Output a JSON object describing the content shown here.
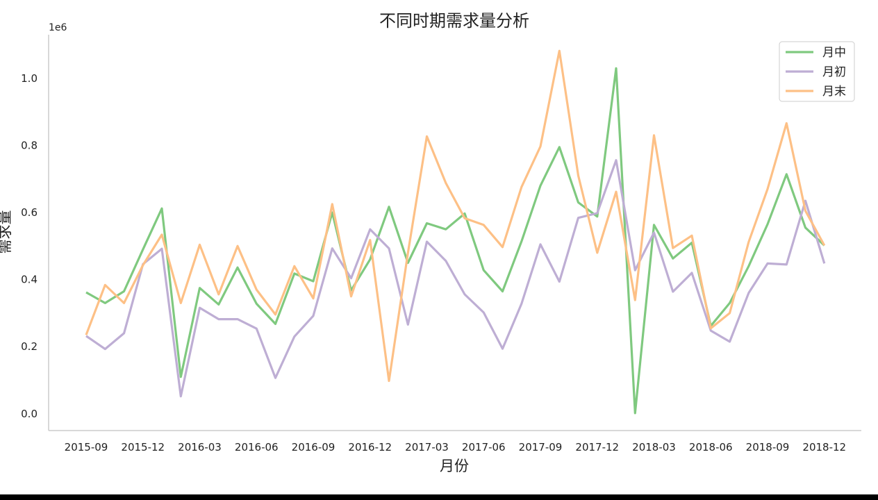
{
  "chart_data": {
    "type": "line",
    "title": "不同时期需求量分析",
    "xlabel": "月份",
    "ylabel": "需求量",
    "y_offset_label": "1e6",
    "ylim": [
      -0.05,
      1.13
    ],
    "yticks": [
      0.0,
      0.2,
      0.4,
      0.6,
      0.8,
      1.0
    ],
    "ytick_labels": [
      "0.0",
      "0.2",
      "0.4",
      "0.6",
      "0.8",
      "1.0"
    ],
    "xticks": [
      "2015-09",
      "2015-12",
      "2016-03",
      "2016-06",
      "2016-09",
      "2016-12",
      "2017-03",
      "2017-06",
      "2017-09",
      "2017-12",
      "2018-03",
      "2018-06",
      "2018-09",
      "2018-12"
    ],
    "x": [
      "2015-09",
      "2015-10",
      "2015-11",
      "2015-12",
      "2016-01",
      "2016-02",
      "2016-03",
      "2016-04",
      "2016-05",
      "2016-06",
      "2016-07",
      "2016-08",
      "2016-09",
      "2016-10",
      "2016-11",
      "2016-12",
      "2017-01",
      "2017-02",
      "2017-03",
      "2017-04",
      "2017-05",
      "2017-06",
      "2017-07",
      "2017-08",
      "2017-09",
      "2017-10",
      "2017-11",
      "2017-12",
      "2018-01",
      "2018-02",
      "2018-03",
      "2018-04",
      "2018-05",
      "2018-06",
      "2018-07",
      "2018-08",
      "2018-09",
      "2018-10",
      "2018-11",
      "2018-12"
    ],
    "grid": false,
    "legend_position": "top-right",
    "series": [
      {
        "name": "月中",
        "color": "#7fc97f",
        "values": [
          0.362,
          0.33,
          0.365,
          0.49,
          0.612,
          0.11,
          0.375,
          0.326,
          0.436,
          0.328,
          0.268,
          0.418,
          0.395,
          0.6,
          0.368,
          0.46,
          0.617,
          0.45,
          0.568,
          0.55,
          0.597,
          0.428,
          0.365,
          0.514,
          0.68,
          0.795,
          0.63,
          0.588,
          1.03,
          0.002,
          0.563,
          0.463,
          0.51,
          0.262,
          0.33,
          0.44,
          0.565,
          0.714,
          0.555,
          0.502
        ]
      },
      {
        "name": "月初",
        "color": "#beaed4",
        "values": [
          0.232,
          0.193,
          0.24,
          0.446,
          0.492,
          0.052,
          0.316,
          0.282,
          0.282,
          0.254,
          0.107,
          0.23,
          0.292,
          0.493,
          0.404,
          0.55,
          0.493,
          0.266,
          0.513,
          0.456,
          0.356,
          0.302,
          0.194,
          0.328,
          0.505,
          0.394,
          0.584,
          0.598,
          0.756,
          0.428,
          0.54,
          0.364,
          0.42,
          0.248,
          0.215,
          0.36,
          0.448,
          0.445,
          0.635,
          0.448
        ]
      },
      {
        "name": "月末",
        "color": "#fdc086",
        "values": [
          0.235,
          0.384,
          0.33,
          0.443,
          0.534,
          0.33,
          0.504,
          0.356,
          0.5,
          0.37,
          0.296,
          0.44,
          0.344,
          0.625,
          0.35,
          0.518,
          0.098,
          0.48,
          0.827,
          0.688,
          0.583,
          0.563,
          0.497,
          0.676,
          0.797,
          1.082,
          0.71,
          0.48,
          0.662,
          0.339,
          0.83,
          0.494,
          0.531,
          0.255,
          0.3,
          0.512,
          0.67,
          0.866,
          0.605,
          0.502
        ]
      }
    ]
  }
}
